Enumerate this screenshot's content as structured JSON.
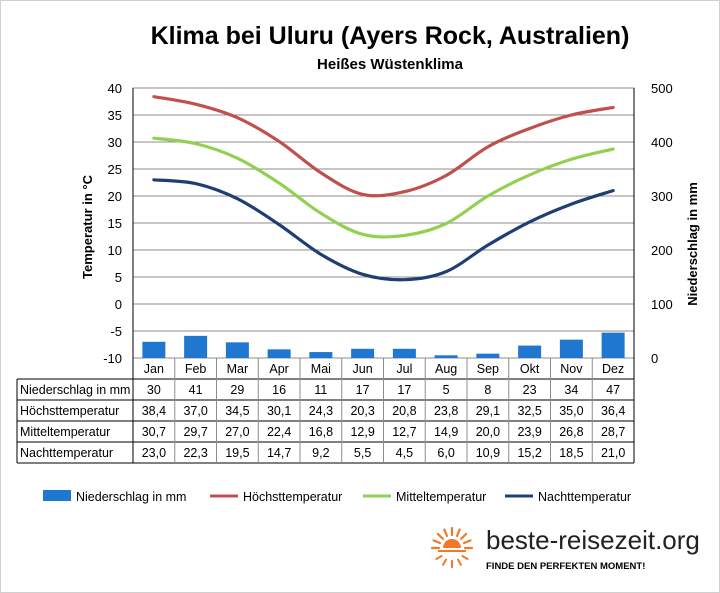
{
  "chart_data": {
    "type": "bar+line",
    "title": "Klima bei Uluru (Ayers Rock, Australien)",
    "subtitle": "Heißes Wüstenklima",
    "categories": [
      "Jan",
      "Feb",
      "Mar",
      "Apr",
      "Mai",
      "Jun",
      "Jul",
      "Aug",
      "Sep",
      "Okt",
      "Nov",
      "Dez"
    ],
    "y_left": {
      "label": "Temperatur in °C",
      "min": -10,
      "max": 40,
      "step": 5,
      "ticks": [
        "40",
        "35",
        "30",
        "25",
        "20",
        "15",
        "10",
        "5",
        "0",
        "-5",
        "-10"
      ]
    },
    "y_right": {
      "label": "Niederschlag in mm",
      "min": 0,
      "max": 500,
      "step": 100,
      "ticks": [
        "500",
        "400",
        "300",
        "200",
        "100",
        "0"
      ]
    },
    "bars": {
      "name": "Niederschlag in mm",
      "color": "#1f77d0",
      "values": [
        30,
        41,
        29,
        16,
        11,
        17,
        17,
        5,
        8,
        23,
        34,
        47
      ]
    },
    "lines": [
      {
        "name": "Höchsttemperatur",
        "color": "#c0504d",
        "values": [
          38.4,
          37.0,
          34.5,
          30.1,
          24.3,
          20.3,
          20.8,
          23.8,
          29.1,
          32.5,
          35.0,
          36.4
        ]
      },
      {
        "name": "Mitteltemperatur",
        "color": "#92d050",
        "values": [
          30.7,
          29.7,
          27.0,
          22.4,
          16.8,
          12.9,
          12.7,
          14.9,
          20.0,
          23.9,
          26.8,
          28.7
        ]
      },
      {
        "name": "Nachttemperatur",
        "color": "#1f3f73",
        "values": [
          23.0,
          22.3,
          19.5,
          14.7,
          9.2,
          5.5,
          4.5,
          6.0,
          10.9,
          15.2,
          18.5,
          21.0
        ]
      }
    ],
    "table": {
      "rows": [
        {
          "label": "Niederschlag in mm",
          "values": [
            "30",
            "41",
            "29",
            "16",
            "11",
            "17",
            "17",
            "5",
            "8",
            "23",
            "34",
            "47"
          ]
        },
        {
          "label": "Höchsttemperatur",
          "values": [
            "38,4",
            "37,0",
            "34,5",
            "30,1",
            "24,3",
            "20,3",
            "20,8",
            "23,8",
            "29,1",
            "32,5",
            "35,0",
            "36,4"
          ]
        },
        {
          "label": "Mitteltemperatur",
          "values": [
            "30,7",
            "29,7",
            "27,0",
            "22,4",
            "16,8",
            "12,9",
            "12,7",
            "14,9",
            "20,0",
            "23,9",
            "26,8",
            "28,7"
          ]
        },
        {
          "label": "Nachttemperatur",
          "values": [
            "23,0",
            "22,3",
            "19,5",
            "14,7",
            "9,2",
            "5,5",
            "4,5",
            "6,0",
            "10,9",
            "15,2",
            "18,5",
            "21,0"
          ]
        }
      ]
    },
    "legend": {
      "position": "bottom",
      "items": [
        {
          "name": "Niederschlag in mm",
          "kind": "bar",
          "color": "#1f77d0"
        },
        {
          "name": "Höchsttemperatur",
          "kind": "line",
          "color": "#c0504d"
        },
        {
          "name": "Mitteltemperatur",
          "kind": "line",
          "color": "#92d050"
        },
        {
          "name": "Nachttemperatur",
          "kind": "line",
          "color": "#1f3f73"
        }
      ]
    }
  },
  "branding": {
    "site": "beste-reisezeit.org",
    "tagline": "FINDE DEN PERFEKTEN MOMENT!",
    "logo_icon": "sun-icon",
    "sun_color": "#f07a2a"
  }
}
